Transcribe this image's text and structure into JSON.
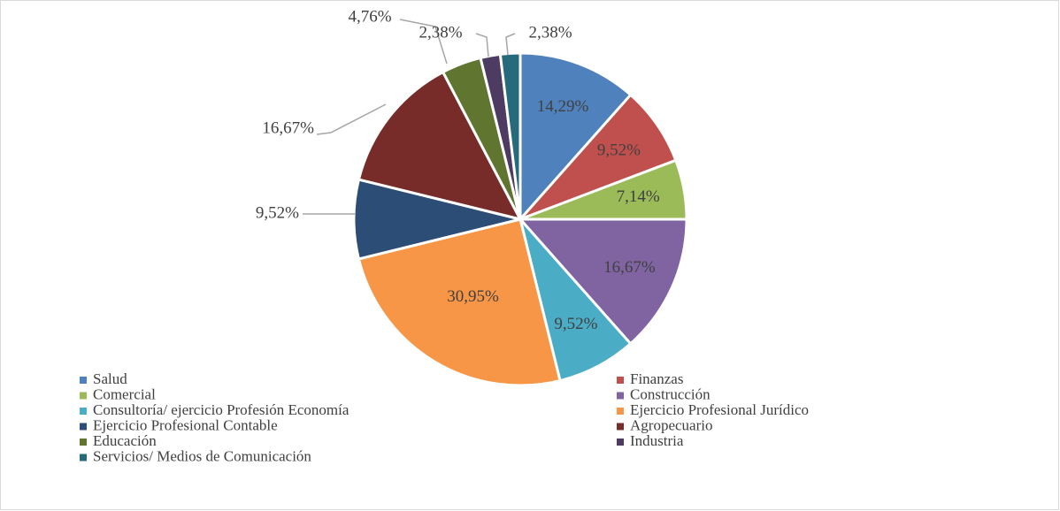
{
  "chart_data": {
    "type": "pie",
    "categories": [
      "Salud",
      "Finanzas",
      "Comercial",
      "Construcción",
      "Consultoría/ ejercicio Profesión Economía",
      "Ejercicio Profesional Jurídico",
      "Ejercicio Profesional Contable",
      "Agropecuario",
      "Educación",
      "Industria",
      "Servicios/ Medios de Comunicación"
    ],
    "values": [
      14.29,
      9.52,
      7.14,
      16.67,
      9.52,
      30.95,
      9.52,
      16.67,
      4.76,
      2.38,
      2.38
    ],
    "value_labels": [
      "14,29%",
      "9,52%",
      "7,14%",
      "16,67%",
      "9,52%",
      "30,95%",
      "9,52%",
      "16,67%",
      "4,76%",
      "2,38%",
      "2,38%"
    ],
    "colors": [
      "#4f81bd",
      "#c0504d",
      "#9bbb59",
      "#8064a2",
      "#4bacc6",
      "#f79646",
      "#2c4d75",
      "#772c2a",
      "#5f7530",
      "#4d3b62",
      "#276a7c"
    ],
    "legend": "bottom"
  }
}
